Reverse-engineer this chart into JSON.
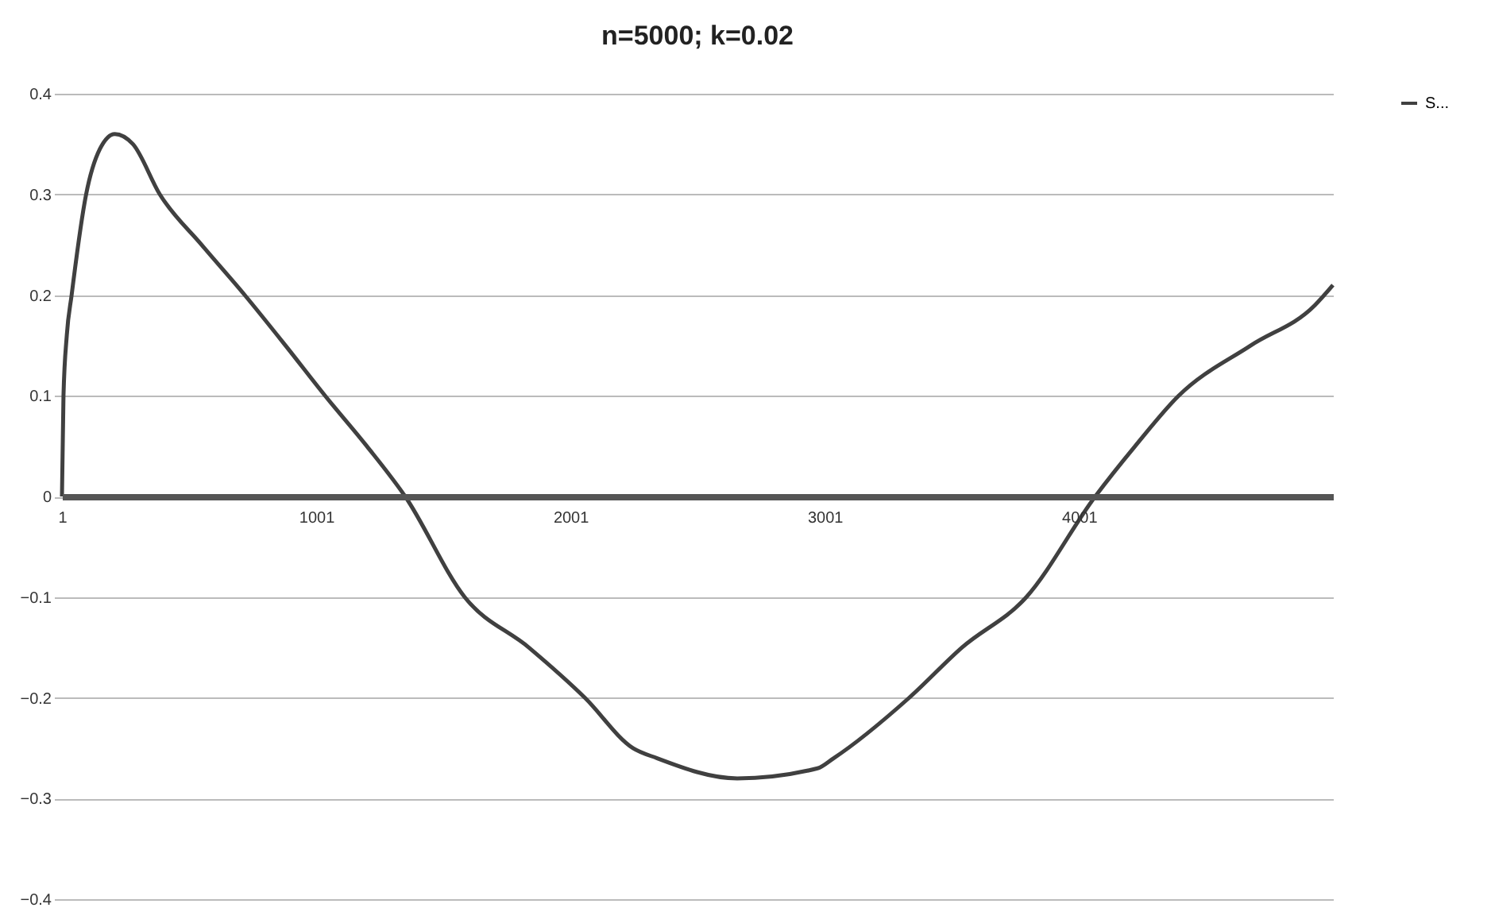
{
  "chart_data": {
    "type": "line",
    "title": "n=5000; k=0.02",
    "x": [
      1,
      7,
      20,
      39,
      96,
      150,
      209,
      280,
      386,
      550,
      720,
      880,
      1036,
      1200,
      1351,
      1585,
      1837,
      2058,
      2247,
      2342,
      2657,
      2973,
      3036,
      3333,
      3541,
      3794,
      4065,
      4222,
      4393,
      4677,
      4929,
      5000
    ],
    "series": [
      {
        "name": "S...",
        "color": "#404040",
        "values": [
          0,
          0.1,
          0.16,
          0.2,
          0.3,
          0.345,
          0.36,
          0.35,
          0.3,
          0.25,
          0.2,
          0.15,
          0.1,
          0.05,
          0,
          -0.1,
          -0.15,
          -0.2,
          -0.25,
          -0.26,
          -0.28,
          -0.27,
          -0.26,
          -0.2,
          -0.15,
          -0.1,
          0,
          0.05,
          0.1,
          0.15,
          0.19,
          0.21
        ]
      }
    ],
    "xlim": [
      1,
      5000
    ],
    "xticks": [
      1,
      1001,
      2001,
      3001,
      4001
    ],
    "ylim": [
      -0.4,
      0.4
    ],
    "yticks": [
      -0.4,
      -0.3,
      -0.2,
      -0.1,
      0,
      0.1,
      0.2,
      0.3,
      0.4
    ],
    "grid": "y",
    "legend": "right",
    "marker": "none",
    "line_style": "solid"
  }
}
